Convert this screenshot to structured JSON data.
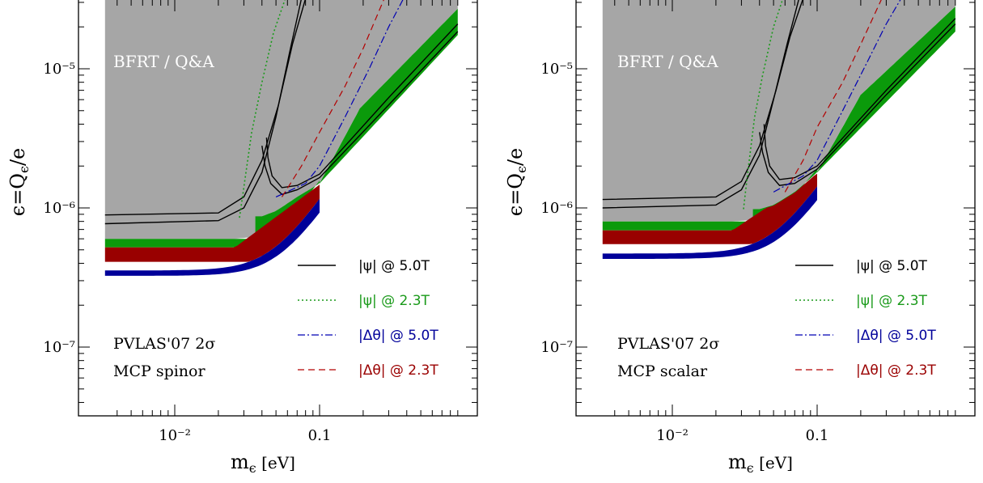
{
  "chart_data": [
    {
      "type": "area",
      "xlabel": "mε [eV]",
      "ylabel": "ε = Qε/e",
      "x_scale": "log",
      "y_scale": "log",
      "xlim": [
        0.0033,
        0.9
      ],
      "ylim": [
        3e-08,
        3e-05
      ],
      "x_ticks": [
        {
          "value": 0.01,
          "label": "10⁻²"
        },
        {
          "value": 0.1,
          "label": "0.1"
        }
      ],
      "y_ticks": [
        {
          "value": 1e-05,
          "label": "10⁻⁵"
        },
        {
          "value": 1e-06,
          "label": "10⁻⁶"
        },
        {
          "value": 1e-07,
          "label": "10⁻⁷"
        }
      ],
      "region_label": "BFRT / Q&A",
      "annotation_lines": [
        "PVLAS'07 2σ",
        "MCP spinor"
      ],
      "bands": {
        "blue": {
          "plateau": [
            3.25e-07,
            3.55e-07
          ],
          "kink": 0.052,
          "slope": 1.5
        },
        "red": {
          "plateau": [
            4.1e-07,
            5.2e-07
          ],
          "end_x": 0.026
        },
        "green": {
          "plateau": [
            5.2e-07,
            6e-07
          ],
          "end_x": 0.036,
          "upper": [
            [
              0.04,
              8.7e-07
            ],
            [
              0.05,
              9.5e-07
            ],
            [
              0.07,
              1.2e-06
            ],
            [
              0.1,
              1.5e-06
            ],
            [
              0.19,
              5.2e-06
            ],
            [
              0.9,
              2.7e-05
            ]
          ],
          "lower": [
            [
              0.1,
              1.5e-06
            ],
            [
              0.9,
              1.75e-05
            ]
          ]
        },
        "grey_lower": [
          [
            0.0033,
            6e-07
          ],
          [
            0.012,
            6e-07
          ],
          [
            0.026,
            6e-07
          ],
          [
            0.036,
            6.2e-07
          ],
          [
            0.04,
            8.7e-07
          ],
          [
            0.05,
            9.5e-07
          ],
          [
            0.07,
            1.2e-06
          ],
          [
            0.1,
            1.5e-06
          ],
          [
            0.19,
            5.2e-06
          ],
          [
            0.9,
            2.7e-05
          ]
        ]
      },
      "curves": {
        "psi_5T": [
          [
            [
              0.0033,
              8.9e-07
            ],
            [
              0.02,
              9.2e-07
            ],
            [
              0.03,
              1.2e-06
            ],
            [
              0.04,
              2.2e-06
            ],
            [
              0.052,
              5.5e-06
            ],
            [
              0.065,
              1.5e-05
            ],
            [
              0.08,
              3.2e-05
            ]
          ],
          [
            [
              0.0033,
              7.7e-07
            ],
            [
              0.02,
              8.1e-07
            ],
            [
              0.03,
              1e-06
            ],
            [
              0.04,
              1.8e-06
            ],
            [
              0.05,
              4.5e-06
            ],
            [
              0.062,
              1.3e-05
            ],
            [
              0.075,
              3.2e-05
            ]
          ],
          [
            [
              0.04,
              2.8e-06
            ],
            [
              0.042,
              2e-06
            ],
            [
              0.046,
              1.5e-06
            ],
            [
              0.055,
              1.25e-06
            ],
            [
              0.07,
              1.35e-06
            ],
            [
              0.1,
              1.65e-06
            ],
            [
              0.3,
              5.5e-06
            ],
            [
              0.9,
              1.85e-05
            ]
          ],
          [
            [
              0.043,
              3.2e-06
            ],
            [
              0.044,
              2.3e-06
            ],
            [
              0.047,
              1.7e-06
            ],
            [
              0.055,
              1.4e-06
            ],
            [
              0.07,
              1.45e-06
            ],
            [
              0.1,
              1.75e-06
            ],
            [
              0.3,
              6.2e-06
            ],
            [
              0.9,
              2.1e-05
            ]
          ]
        ],
        "psi_2.3T": [
          [
            [
              0.028,
              8.5e-07
            ],
            [
              0.029,
              1.1e-06
            ],
            [
              0.031,
              1.8e-06
            ],
            [
              0.034,
              3.5e-06
            ],
            [
              0.04,
              8e-06
            ],
            [
              0.048,
              1.8e-05
            ],
            [
              0.058,
              3.2e-05
            ]
          ]
        ],
        "dtheta_5T": [
          [
            [
              0.05,
              1.2e-06
            ],
            [
              0.08,
              1.5e-06
            ],
            [
              0.1,
              2e-06
            ],
            [
              0.15,
              4.5e-06
            ],
            [
              0.22,
              1e-05
            ],
            [
              0.3,
              2e-05
            ],
            [
              0.38,
              3.2e-05
            ]
          ]
        ],
        "dtheta_2.3T": [
          [
            [
              0.055,
              1.2e-06
            ],
            [
              0.075,
              2e-06
            ],
            [
              0.1,
              3.5e-06
            ],
            [
              0.15,
              7.5e-06
            ],
            [
              0.2,
              1.4e-05
            ],
            [
              0.28,
              3.2e-05
            ]
          ]
        ]
      }
    },
    {
      "type": "area",
      "xlabel": "mε [eV]",
      "ylabel": "ε = Qε/e",
      "x_scale": "log",
      "y_scale": "log",
      "xlim": [
        0.0033,
        0.9
      ],
      "ylim": [
        3e-08,
        3e-05
      ],
      "x_ticks": [
        {
          "value": 0.01,
          "label": "10⁻²"
        },
        {
          "value": 0.1,
          "label": "0.1"
        }
      ],
      "y_ticks": [
        {
          "value": 1e-05,
          "label": "10⁻⁵"
        },
        {
          "value": 1e-06,
          "label": "10⁻⁶"
        },
        {
          "value": 1e-07,
          "label": "10⁻⁷"
        }
      ],
      "region_label": "BFRT / Q&A",
      "annotation_lines": [
        "PVLAS'07 2σ",
        "MCP scalar"
      ],
      "bands": {
        "blue": {
          "plateau": [
            4.3e-07,
            4.7e-07
          ],
          "kink": 0.055,
          "slope": 1.5
        },
        "red": {
          "plateau": [
            5.5e-07,
            6.9e-07
          ],
          "end_x": 0.026
        },
        "green": {
          "plateau": [
            6.9e-07,
            8e-07
          ],
          "end_x": 0.036,
          "upper": [
            [
              0.04,
              9.8e-07
            ],
            [
              0.05,
              1.05e-06
            ],
            [
              0.07,
              1.3e-06
            ],
            [
              0.1,
              1.8e-06
            ],
            [
              0.2,
              6.5e-06
            ],
            [
              0.9,
              2.8e-05
            ]
          ],
          "lower": [
            [
              0.1,
              1.8e-06
            ],
            [
              0.9,
              1.85e-05
            ]
          ]
        },
        "grey_lower": [
          [
            0.0033,
            8e-07
          ],
          [
            0.012,
            8e-07
          ],
          [
            0.026,
            8e-07
          ],
          [
            0.036,
            8.2e-07
          ],
          [
            0.04,
            9.8e-07
          ],
          [
            0.05,
            1.05e-06
          ],
          [
            0.07,
            1.3e-06
          ],
          [
            0.1,
            1.8e-06
          ],
          [
            0.2,
            6.5e-06
          ],
          [
            0.9,
            2.8e-05
          ]
        ]
      },
      "curves": {
        "psi_5T": [
          [
            [
              0.0033,
              1.15e-06
            ],
            [
              0.02,
              1.2e-06
            ],
            [
              0.03,
              1.55e-06
            ],
            [
              0.04,
              2.8e-06
            ],
            [
              0.052,
              7e-06
            ],
            [
              0.065,
              1.7e-05
            ],
            [
              0.08,
              3.2e-05
            ]
          ],
          [
            [
              0.0033,
              1e-06
            ],
            [
              0.02,
              1.05e-06
            ],
            [
              0.03,
              1.35e-06
            ],
            [
              0.04,
              2.4e-06
            ],
            [
              0.05,
              6e-06
            ],
            [
              0.062,
              1.5e-05
            ],
            [
              0.075,
              3.2e-05
            ]
          ],
          [
            [
              0.04,
              3.5e-06
            ],
            [
              0.042,
              2.5e-06
            ],
            [
              0.046,
              1.8e-06
            ],
            [
              0.055,
              1.45e-06
            ],
            [
              0.07,
              1.5e-06
            ],
            [
              0.1,
              1.9e-06
            ],
            [
              0.3,
              6.5e-06
            ],
            [
              0.9,
              2.1e-05
            ]
          ],
          [
            [
              0.043,
              4e-06
            ],
            [
              0.044,
              2.8e-06
            ],
            [
              0.047,
              2e-06
            ],
            [
              0.055,
              1.6e-06
            ],
            [
              0.07,
              1.65e-06
            ],
            [
              0.1,
              2e-06
            ],
            [
              0.3,
              7e-06
            ],
            [
              0.9,
              2.3e-05
            ]
          ]
        ],
        "psi_2.3T": [
          [
            [
              0.031,
              9.8e-07
            ],
            [
              0.032,
              1.3e-06
            ],
            [
              0.034,
              2.2e-06
            ],
            [
              0.037,
              4.5e-06
            ],
            [
              0.042,
              9e-06
            ],
            [
              0.05,
              2e-05
            ],
            [
              0.058,
              3.2e-05
            ]
          ]
        ],
        "dtheta_5T": [
          [
            [
              0.05,
              1.3e-06
            ],
            [
              0.08,
              1.7e-06
            ],
            [
              0.1,
              2.2e-06
            ],
            [
              0.15,
              5e-06
            ],
            [
              0.22,
              1.1e-05
            ],
            [
              0.3,
              2.1e-05
            ],
            [
              0.38,
              3.2e-05
            ]
          ]
        ],
        "dtheta_2.3T": [
          [
            [
              0.06,
              1.3e-06
            ],
            [
              0.08,
              2.2e-06
            ],
            [
              0.1,
              3.8e-06
            ],
            [
              0.15,
              8e-06
            ],
            [
              0.2,
              1.5e-05
            ],
            [
              0.28,
              3.2e-05
            ]
          ]
        ]
      }
    }
  ],
  "legend": {
    "psi_5T": "|ψ| @ 5.0T",
    "psi_2.3T": "|ψ| @ 2.3T",
    "dtheta_5T": "|Δθ| @ 5.0T",
    "dtheta_2.3T": "|Δθ| @ 2.3T"
  },
  "colors": {
    "grey": "#a6a6a6",
    "green": "#0b9a0b",
    "red": "#990000",
    "blue": "#000099",
    "black": "#000000",
    "green_line": "#1a9a1a",
    "blue_line": "#0000b3",
    "red_line": "#b30000",
    "legend_psi_2.3T_text": "#1a9a1a",
    "legend_dtheta_5T_text": "#00009a",
    "legend_dtheta_2.3T_text": "#9a0000"
  }
}
